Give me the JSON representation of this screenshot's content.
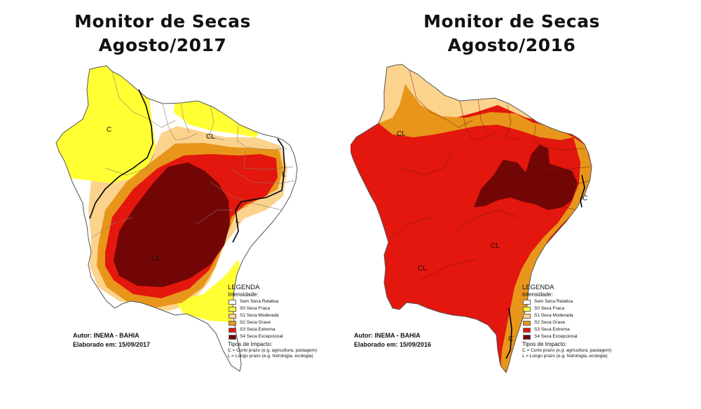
{
  "colors": {
    "none": "#ffffff",
    "s0": "#ffff33",
    "s1": "#fcd38d",
    "s2": "#e8961b",
    "s3": "#e3170d",
    "s4": "#720606",
    "outline": "#555555"
  },
  "maps": [
    {
      "title_line1": "Monitor de Secas",
      "title_line2": "Agosto/2017",
      "author": "Autor: INEMA - BAHIA",
      "elaborated": "Elaborado em: 15/09/2017",
      "labels": [
        "C",
        "CL",
        "L",
        "L",
        "CL"
      ]
    },
    {
      "title_line1": "Monitor de Secas",
      "title_line2": "Agosto/2016",
      "author": "Autor: INEMA - BAHIA",
      "elaborated": "Elaborado em: 15/09/2016",
      "labels": [
        "CL",
        "CL",
        "CL",
        "C",
        "C"
      ]
    }
  ],
  "legend": {
    "title": "LEGENDA",
    "intensity_label": "Intensidade:",
    "items": [
      {
        "label": "Sem Seca Relativa",
        "color_key": "none"
      },
      {
        "label": "S0 Seca Fraca",
        "color_key": "s0"
      },
      {
        "label": "S1 Seca Moderada",
        "color_key": "s1"
      },
      {
        "label": "S2 Seca Grave",
        "color_key": "s2"
      },
      {
        "label": "S3 Seca Extrema",
        "color_key": "s3"
      },
      {
        "label": "S4 Seca Excepcional",
        "color_key": "s4"
      }
    ],
    "impact_title": "Tipos de Impacto:",
    "impact_items": [
      "C = Curto prazo (e.g. agricultura, pastagem)",
      "L = Longo prazo (e.g. hidrologia, ecologia)"
    ]
  }
}
